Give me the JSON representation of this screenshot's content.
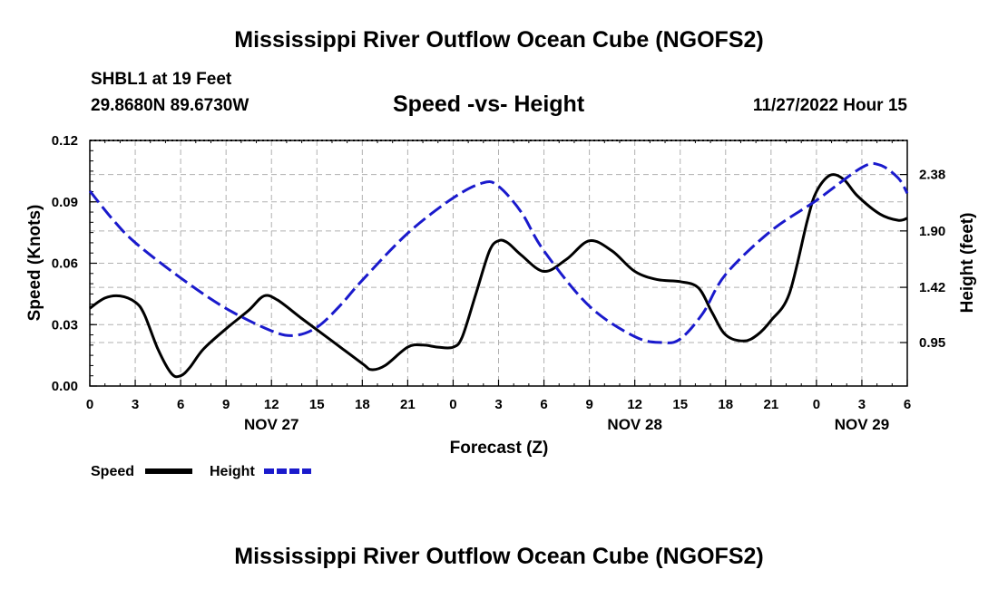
{
  "header": {
    "title": "Mississippi River Outflow Ocean Cube (NGOFS2)",
    "station": "SHBL1 at 19 Feet",
    "coords": "29.8680N  89.6730W",
    "subtitle": "Speed -vs- Height",
    "datetime": "11/27/2022 Hour 15"
  },
  "footer": {
    "title": "Mississippi River Outflow Ocean Cube (NGOFS2)"
  },
  "legend": {
    "speed_label": "Speed",
    "height_label": "Height"
  },
  "colors": {
    "speed": "#000000",
    "height": "#1a1acc",
    "grid": "#b0b0b0"
  },
  "chart_data": {
    "type": "line",
    "title": "Speed -vs- Height",
    "xlabel": "Forecast (Z)",
    "ylabel": "Speed (Knots)",
    "y2label": "Height (feet)",
    "xlim": [
      0,
      54
    ],
    "ylim": [
      0,
      0.12
    ],
    "y2lim": [
      0.58,
      2.67
    ],
    "grid": true,
    "legend_position": "bottom-left",
    "x_tick_values": [
      0,
      3,
      6,
      9,
      12,
      15,
      18,
      21,
      24,
      27,
      30,
      33,
      36,
      39,
      42,
      45,
      48,
      51,
      54
    ],
    "x_tick_labels": [
      "0",
      "3",
      "6",
      "9",
      "12",
      "15",
      "18",
      "21",
      "0",
      "3",
      "6",
      "9",
      "12",
      "15",
      "18",
      "21",
      "0",
      "3",
      "6"
    ],
    "date_labels": [
      {
        "x": 12,
        "label": "NOV 27"
      },
      {
        "x": 36,
        "label": "NOV 28"
      },
      {
        "x": 51,
        "label": "NOV 29"
      }
    ],
    "y_ticks": [
      0,
      0.03,
      0.06,
      0.09,
      0.12
    ],
    "y_tick_labels": [
      "0.00",
      "0.03",
      "0.06",
      "0.09",
      "0.12"
    ],
    "y2_ticks": [
      0.95,
      1.42,
      1.9,
      2.38
    ],
    "y2_tick_labels": [
      "0.95",
      "1.42",
      "1.90",
      "2.38"
    ],
    "series": [
      {
        "name": "Speed",
        "axis": "left",
        "style": "solid",
        "x": [
          0,
          1,
          2,
          3,
          3.6,
          4.5,
          5.4,
          6,
          6.6,
          7.5,
          9,
          10.5,
          11.5,
          12.4,
          14,
          16,
          18,
          18.6,
          19.5,
          21,
          22,
          23,
          24,
          24.6,
          25.5,
          26.4,
          27,
          27.6,
          28.5,
          30,
          31.5,
          33,
          34.5,
          36,
          37.5,
          39,
          40.2,
          41.1,
          42,
          43.2,
          44.1,
          45,
          46.2,
          47.4,
          48,
          48.9,
          49.8,
          50.7,
          52.2,
          53.4,
          54
        ],
        "y": [
          0.038,
          0.043,
          0.044,
          0.041,
          0.035,
          0.018,
          0.006,
          0.005,
          0.009,
          0.018,
          0.028,
          0.037,
          0.044,
          0.042,
          0.033,
          0.022,
          0.011,
          0.008,
          0.01,
          0.019,
          0.02,
          0.019,
          0.019,
          0.024,
          0.045,
          0.066,
          0.071,
          0.07,
          0.064,
          0.056,
          0.062,
          0.071,
          0.066,
          0.056,
          0.052,
          0.051,
          0.048,
          0.036,
          0.025,
          0.022,
          0.025,
          0.032,
          0.045,
          0.081,
          0.095,
          0.103,
          0.101,
          0.093,
          0.084,
          0.081,
          0.082
        ]
      },
      {
        "name": "Height",
        "axis": "right",
        "style": "dashed",
        "x": [
          0,
          1.5,
          3,
          6,
          9,
          12,
          13.5,
          15,
          16.5,
          18,
          21,
          24,
          26,
          27,
          28.5,
          30,
          33,
          36,
          37.8,
          39,
          40.5,
          42,
          45,
          48,
          51,
          52.2,
          53.4,
          54
        ],
        "y": [
          2.24,
          2.0,
          1.8,
          1.5,
          1.24,
          1.05,
          1.01,
          1.08,
          1.26,
          1.48,
          1.88,
          2.18,
          2.31,
          2.28,
          2.06,
          1.73,
          1.26,
          1.0,
          0.95,
          0.98,
          1.2,
          1.53,
          1.9,
          2.16,
          2.44,
          2.46,
          2.35,
          2.22
        ]
      }
    ]
  }
}
